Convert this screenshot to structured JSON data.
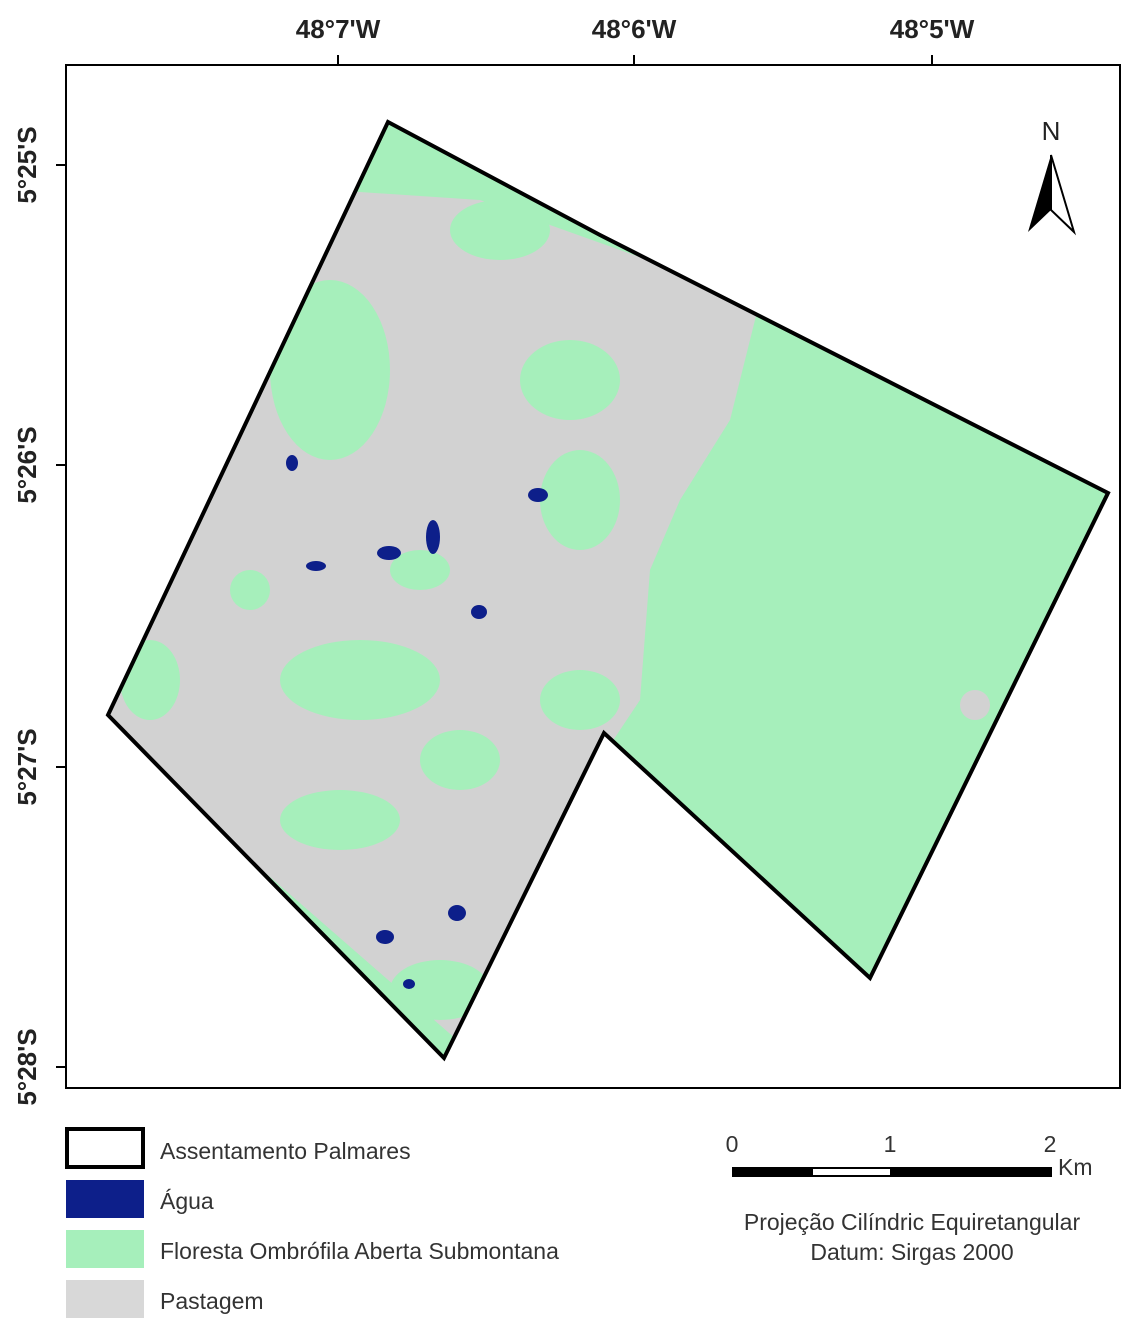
{
  "map": {
    "longitude_labels": [
      "48°7'W",
      "48°6'W",
      "48°5'W"
    ],
    "latitude_labels": [
      "5°25'S",
      "5°26'S",
      "5°27'S",
      "5°28'S"
    ],
    "north_label": "N"
  },
  "legend": {
    "items": [
      "Assentamento Palmares",
      "Água",
      "Floresta Ombrófila Aberta Submontana",
      "Pastagem"
    ]
  },
  "scale_bar": {
    "labels": [
      "0",
      "1",
      "2"
    ],
    "unit": "Km"
  },
  "projection": {
    "line1": "Projeção Cilíndric Equiretangular",
    "line2": "Datum: Sirgas 2000"
  }
}
